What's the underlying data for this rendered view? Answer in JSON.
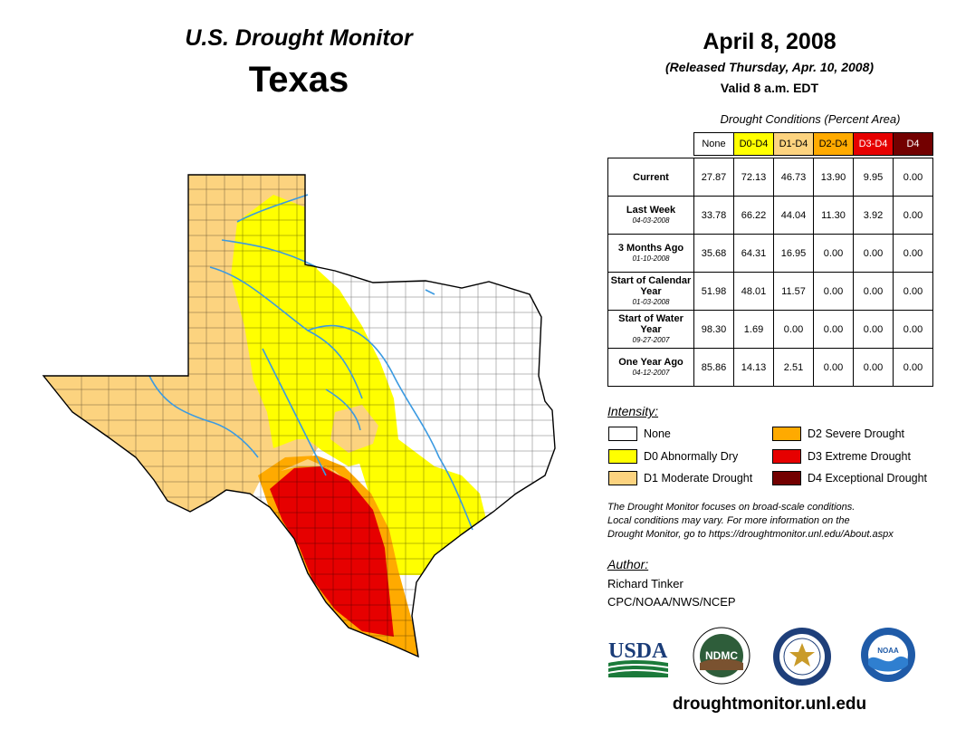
{
  "header": {
    "program": "U.S. Drought Monitor",
    "state": "Texas",
    "date": "April 8, 2008",
    "released": "(Released Thursday, Apr. 10, 2008)",
    "valid": "Valid 8 a.m. EDT"
  },
  "table": {
    "caption": "Drought Conditions (Percent Area)",
    "columns": [
      {
        "label": "None",
        "color": "#ffffff",
        "text_color": "#000000"
      },
      {
        "label": "D0-D4",
        "color": "#ffff00",
        "text_color": "#000000"
      },
      {
        "label": "D1-D4",
        "color": "#fcd37f",
        "text_color": "#000000"
      },
      {
        "label": "D2-D4",
        "color": "#ffaa00",
        "text_color": "#000000"
      },
      {
        "label": "D3-D4",
        "color": "#e60000",
        "text_color": "#ffffff"
      },
      {
        "label": "D4",
        "color": "#730000",
        "text_color": "#ffffff"
      }
    ],
    "rows": [
      {
        "label": "Current",
        "date": "",
        "values": [
          "27.87",
          "72.13",
          "46.73",
          "13.90",
          "9.95",
          "0.00"
        ]
      },
      {
        "label": "Last Week",
        "date": "04-03-2008",
        "values": [
          "33.78",
          "66.22",
          "44.04",
          "11.30",
          "3.92",
          "0.00"
        ]
      },
      {
        "label": "3 Months Ago",
        "date": "01-10-2008",
        "values": [
          "35.68",
          "64.31",
          "16.95",
          "0.00",
          "0.00",
          "0.00"
        ]
      },
      {
        "label": "Start of Calendar Year",
        "date": "01-03-2008",
        "values": [
          "51.98",
          "48.01",
          "11.57",
          "0.00",
          "0.00",
          "0.00"
        ]
      },
      {
        "label": "Start of Water Year",
        "date": "09-27-2007",
        "values": [
          "98.30",
          "1.69",
          "0.00",
          "0.00",
          "0.00",
          "0.00"
        ]
      },
      {
        "label": "One Year Ago",
        "date": "04-12-2007",
        "values": [
          "85.86",
          "14.13",
          "2.51",
          "0.00",
          "0.00",
          "0.00"
        ]
      }
    ]
  },
  "legend": {
    "title": "Intensity:",
    "items": [
      {
        "label": "None",
        "color": "#ffffff"
      },
      {
        "label": "D0 Abnormally Dry",
        "color": "#ffff00"
      },
      {
        "label": "D1 Moderate Drought",
        "color": "#fcd37f"
      },
      {
        "label": "D2 Severe Drought",
        "color": "#ffaa00"
      },
      {
        "label": "D3 Extreme Drought",
        "color": "#e60000"
      },
      {
        "label": "D4 Exceptional Drought",
        "color": "#730000"
      }
    ]
  },
  "note": {
    "line1": "The Drought Monitor focuses on broad-scale conditions.",
    "line2": "Local conditions may vary. For more information on the",
    "line3": "Drought Monitor, go to https://droughtmonitor.unl.edu/About.aspx"
  },
  "author": {
    "title": "Author:",
    "name": "Richard Tinker",
    "org": "CPC/NOAA/NWS/NCEP"
  },
  "logos": {
    "usda": "USDA",
    "ndmc": "NDMC",
    "noaa": "NOAA"
  },
  "website": "droughtmonitor.unl.edu"
}
